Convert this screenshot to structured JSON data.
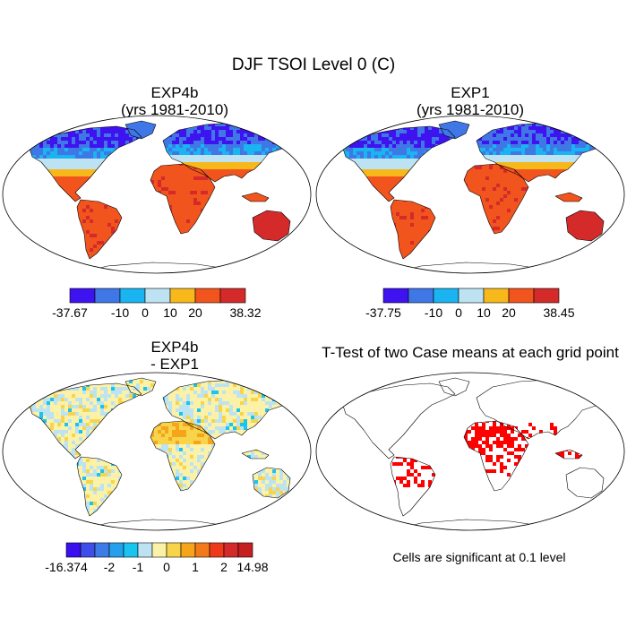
{
  "figure": {
    "title": "DJF TSOI Level 0 (C)"
  },
  "panels": [
    {
      "title_line1": "EXP4b",
      "title_line2": "(yrs 1981-2010)",
      "colorbar": {
        "colors": [
          "#3f12f0",
          "#3f77e6",
          "#1ab4f0",
          "#bde3f2",
          "#f7b81c",
          "#f2541d",
          "#d42a2a"
        ],
        "labels": [
          "-37.67",
          "-10",
          "0",
          "10",
          "20",
          "38.32"
        ]
      }
    },
    {
      "title_line1": "EXP1",
      "title_line2": "(yrs 1981-2010)",
      "colorbar": {
        "colors": [
          "#3f12f0",
          "#3f77e6",
          "#1ab4f0",
          "#bde3f2",
          "#f7b81c",
          "#f2541d",
          "#d42a2a"
        ],
        "labels": [
          "-37.75",
          "-10",
          "0",
          "10",
          "20",
          "38.45"
        ]
      }
    },
    {
      "title_line1": "EXP4b",
      "title_line2": "- EXP1",
      "colorbar": {
        "colors": [
          "#3a10ef",
          "#3d4fe8",
          "#3f7be6",
          "#26a0ea",
          "#1ac4f0",
          "#bde3f2",
          "#fbf2a8",
          "#f8d44a",
          "#f5a41c",
          "#f27a1c",
          "#ee3a1b",
          "#d42a2a",
          "#c42020"
        ],
        "labels": [
          "-16.374",
          "-2",
          "-1",
          "0",
          "1",
          "2",
          "14.98"
        ]
      }
    },
    {
      "title_line1": "T-Test of two Case means at each grid point",
      "note": "Cells are significant at 0.1 level",
      "colors": {
        "significant": "#ff0000"
      }
    }
  ]
}
